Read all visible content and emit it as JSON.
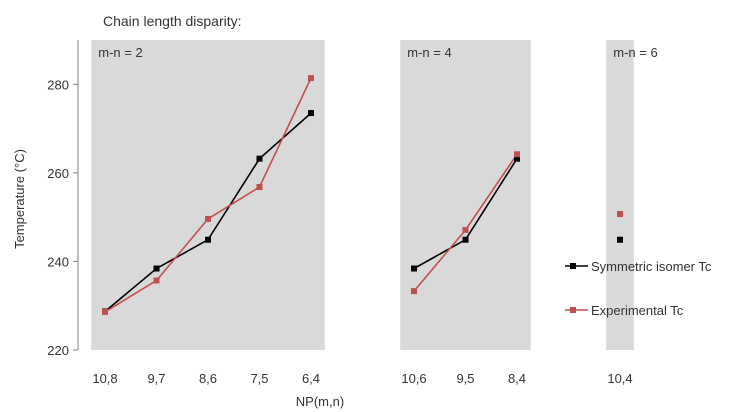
{
  "chart_data": {
    "type": "line",
    "title": "Chain length disparity:",
    "xlabel": "NP(m,n)",
    "ylabel": "Temperature (°C)",
    "ylim": [
      220,
      290
    ],
    "yticks": [
      220,
      240,
      260,
      280
    ],
    "grid": false,
    "legend_position": "right",
    "panels": [
      {
        "label": "m-n = 2",
        "categories": [
          "10,8",
          "9,7",
          "8,6",
          "7,5",
          "6,4"
        ]
      },
      {
        "label": "m-n = 4",
        "categories": [
          "10,6",
          "9,5",
          "8,4"
        ]
      },
      {
        "label": "m-n = 6",
        "categories": [
          "10,4"
        ]
      }
    ],
    "series": [
      {
        "name": "Symmetric isomer Tc",
        "color": "#000000",
        "values": [
          [
            228.7,
            238.4,
            244.9,
            263.2,
            273.5
          ],
          [
            238.4,
            244.9,
            263.2
          ],
          [
            244.9
          ]
        ]
      },
      {
        "name": "Experimental Tc",
        "color": "#c0504d",
        "values": [
          [
            228.6,
            235.7,
            249.6,
            256.8,
            281.4
          ],
          [
            233.3,
            247.1,
            264.2
          ],
          [
            250.7
          ]
        ]
      }
    ]
  },
  "colors": {
    "panel_bg": "#d9d9d9",
    "axis": "#808080"
  }
}
